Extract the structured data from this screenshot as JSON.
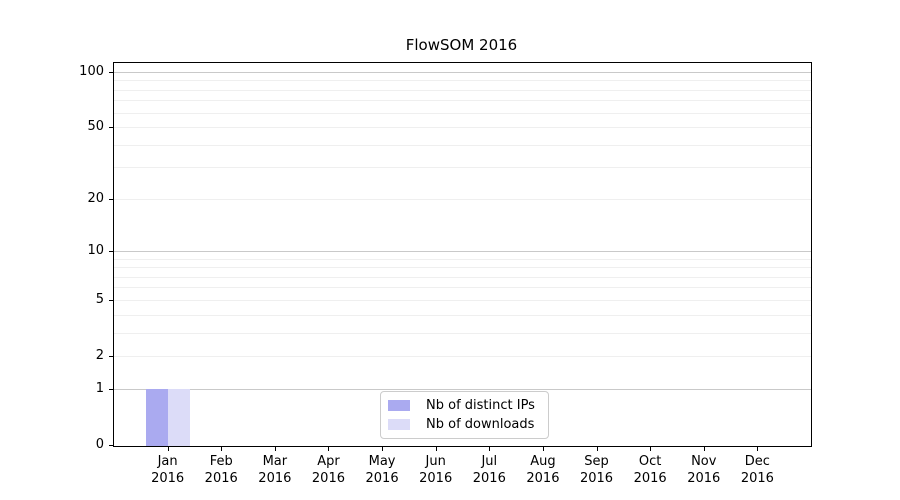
{
  "chart_data": {
    "type": "bar",
    "title": "FlowSOM 2016",
    "categories": [
      {
        "month": "Jan",
        "year": "2016"
      },
      {
        "month": "Feb",
        "year": "2016"
      },
      {
        "month": "Mar",
        "year": "2016"
      },
      {
        "month": "Apr",
        "year": "2016"
      },
      {
        "month": "May",
        "year": "2016"
      },
      {
        "month": "Jun",
        "year": "2016"
      },
      {
        "month": "Jul",
        "year": "2016"
      },
      {
        "month": "Aug",
        "year": "2016"
      },
      {
        "month": "Sep",
        "year": "2016"
      },
      {
        "month": "Oct",
        "year": "2016"
      },
      {
        "month": "Nov",
        "year": "2016"
      },
      {
        "month": "Dec",
        "year": "2016"
      }
    ],
    "series": [
      {
        "name": "Nb of distinct IPs",
        "color": "#aaaaf0",
        "values": [
          1,
          0,
          0,
          0,
          0,
          0,
          0,
          0,
          0,
          0,
          0,
          0
        ]
      },
      {
        "name": "Nb of downloads",
        "color": "#dcdcf8",
        "values": [
          1,
          0,
          0,
          0,
          0,
          0,
          0,
          0,
          0,
          0,
          0,
          0
        ]
      }
    ],
    "xlabel": "",
    "ylabel": "",
    "yscale": "log10(value+1)",
    "ylim": [
      0,
      112
    ],
    "yticks": [
      0,
      1,
      2,
      5,
      10,
      20,
      50,
      100
    ],
    "gridlines": {
      "major": [
        1,
        10,
        100
      ],
      "minor": [
        2,
        3,
        4,
        5,
        6,
        7,
        8,
        9,
        20,
        30,
        40,
        50,
        60,
        70,
        80,
        90
      ]
    },
    "grid": true,
    "legend_position": "bottom-center",
    "colors": {
      "major_grid": "#c9c9c9",
      "minor_grid": "#efefef",
      "spine": "#000000",
      "legend_border": "#cccccc"
    }
  }
}
